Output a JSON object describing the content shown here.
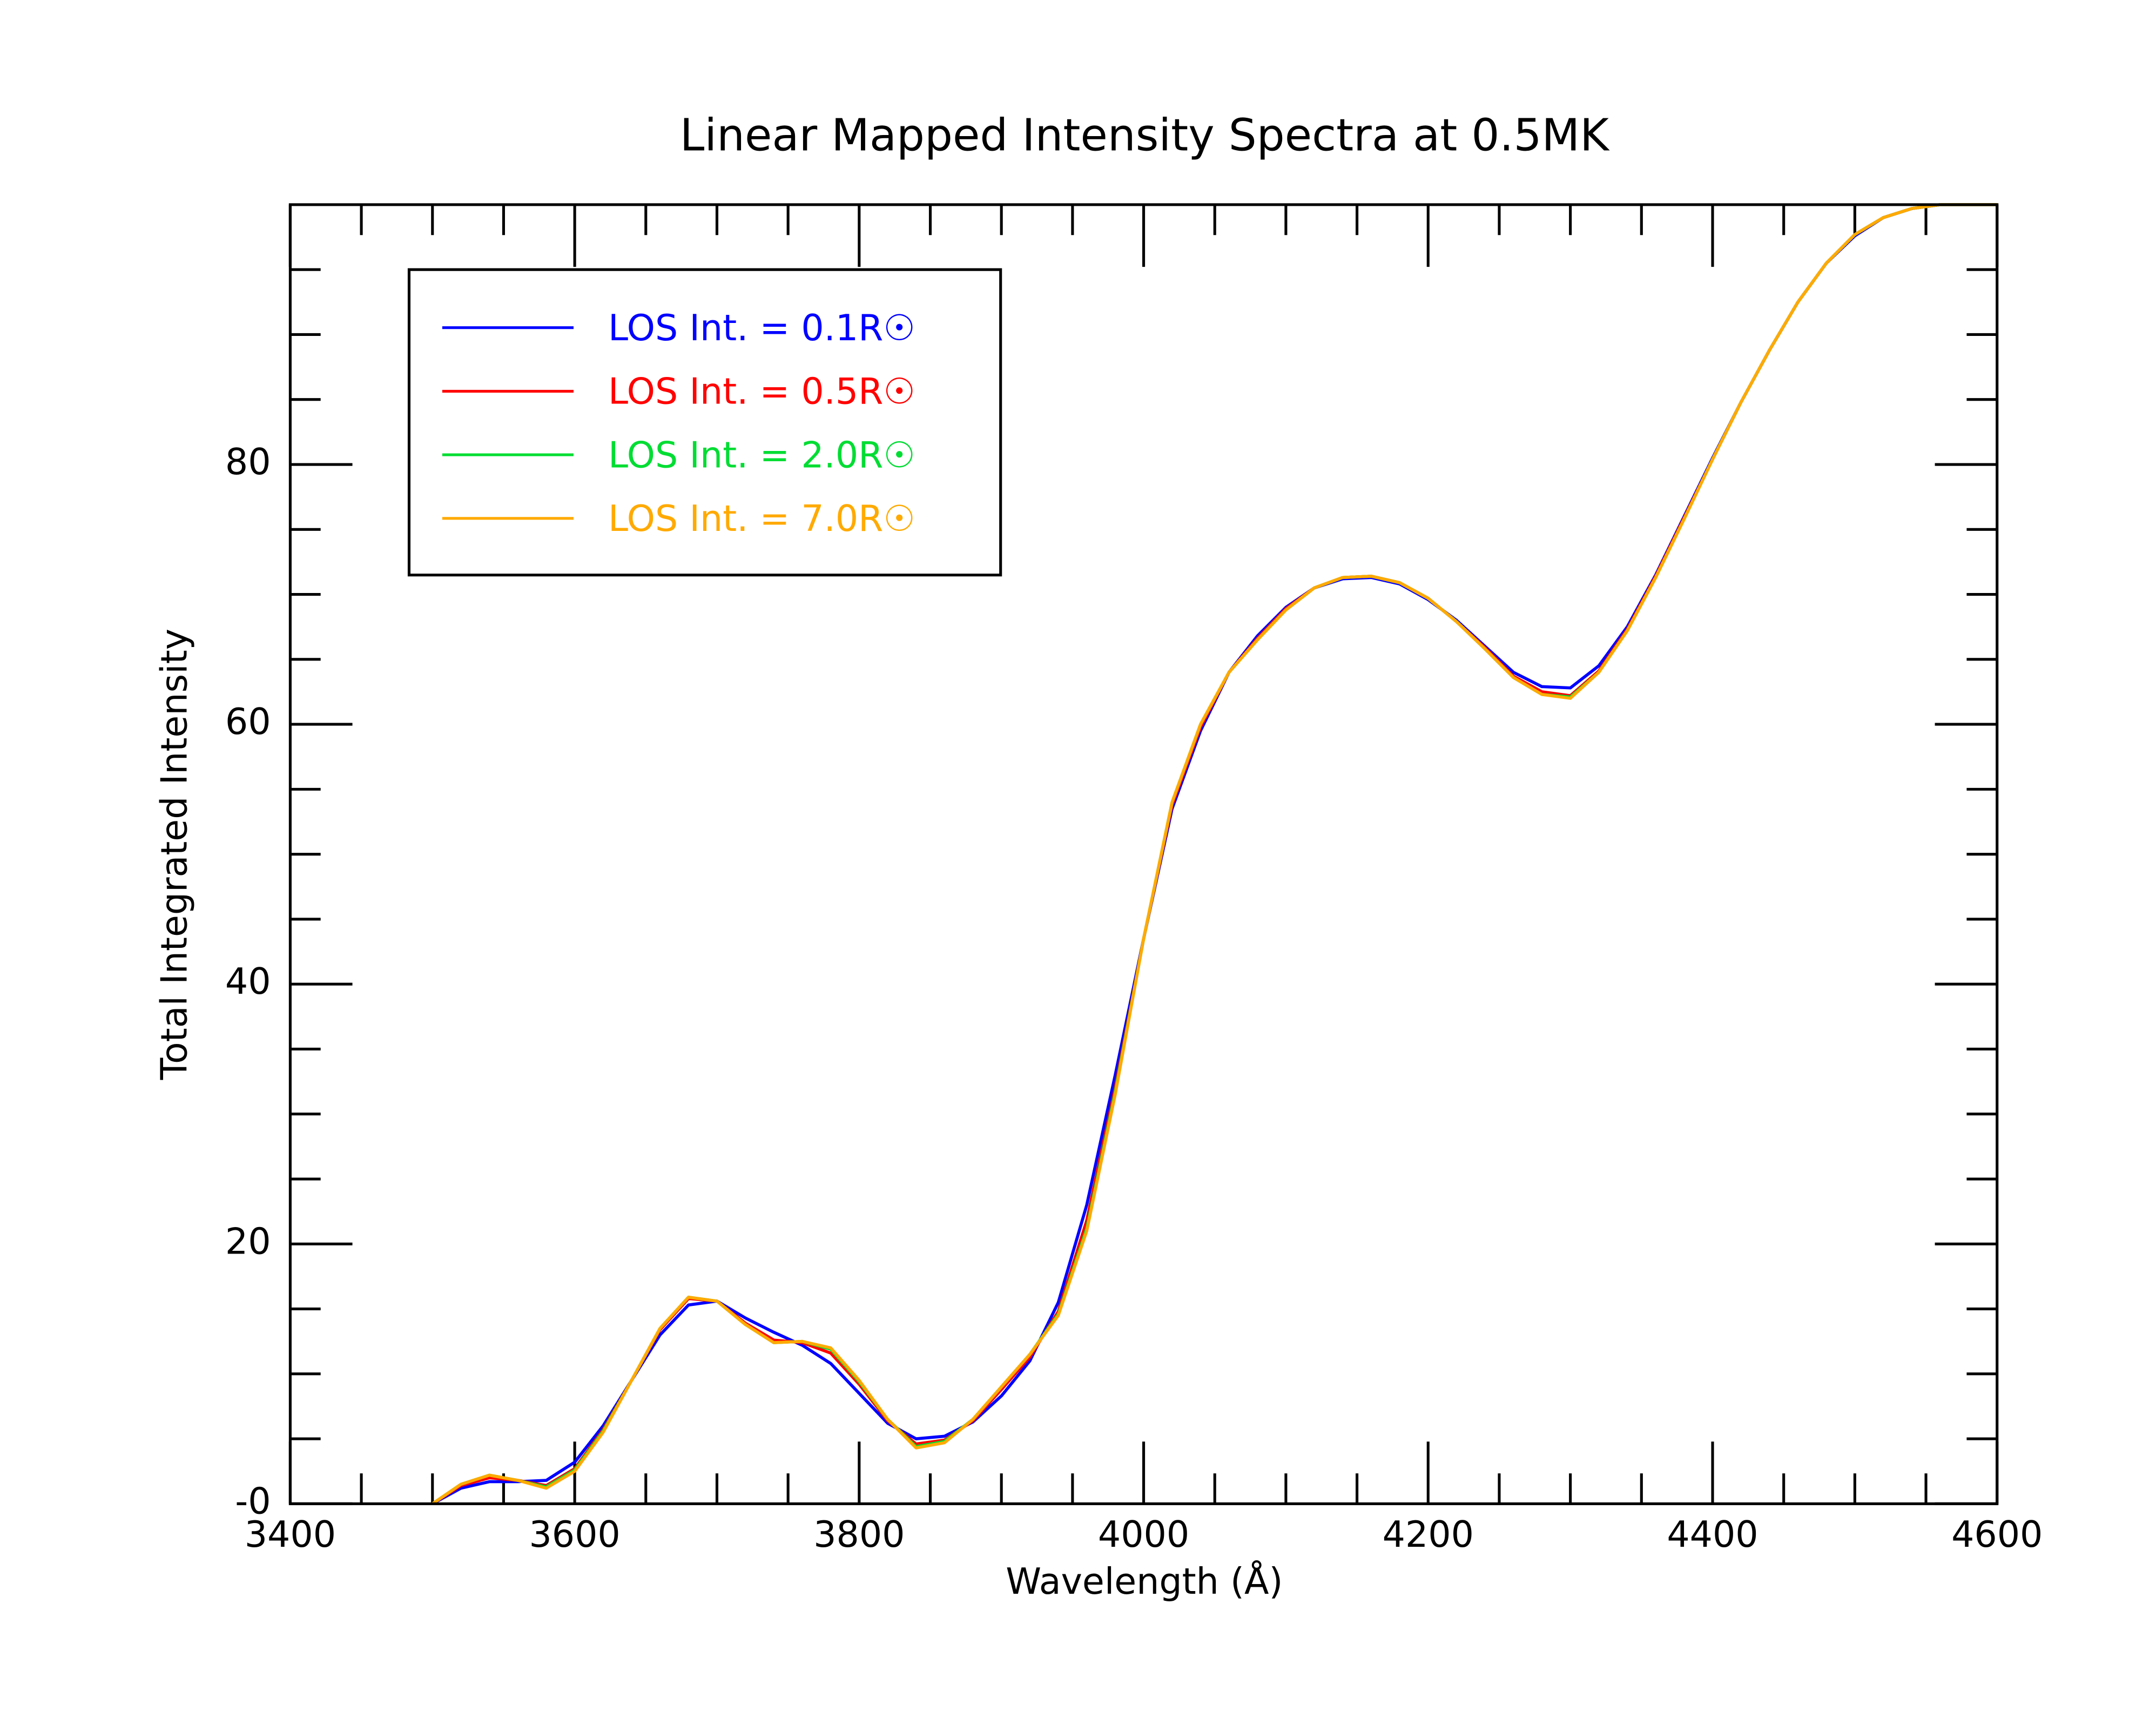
{
  "chart_data": {
    "type": "line",
    "title": "Linear Mapped Intensity Spectra at 0.5MK",
    "x_label": "Wavelength (Å)",
    "y_label": "Total Integrated Intensity",
    "xlim": [
      3400,
      4600
    ],
    "ylim": [
      0,
      100
    ],
    "xticks": [
      3400,
      3600,
      3800,
      4000,
      4200,
      4400,
      4600
    ],
    "yticks": [
      {
        "value": 0,
        "label": "-0"
      },
      20,
      40,
      60,
      80
    ],
    "x_minor_ticks": [
      3450,
      3500,
      3550,
      3650,
      3700,
      3750,
      3850,
      3900,
      3950,
      4050,
      4100,
      4150,
      4250,
      4300,
      4350,
      4450,
      4500,
      4550
    ],
    "y_minor_ticks": [
      5,
      10,
      15,
      25,
      30,
      35,
      45,
      50,
      55,
      65,
      70,
      75,
      85,
      90,
      95
    ],
    "legend": "upper left",
    "x": [
      3500,
      3520,
      3540,
      3560,
      3580,
      3600,
      3620,
      3640,
      3660,
      3680,
      3700,
      3720,
      3740,
      3760,
      3780,
      3800,
      3820,
      3840,
      3860,
      3880,
      3900,
      3920,
      3940,
      3960,
      3980,
      4000,
      4020,
      4040,
      4060,
      4080,
      4100,
      4120,
      4140,
      4160,
      4180,
      4200,
      4220,
      4240,
      4260,
      4280,
      4300,
      4320,
      4340,
      4360,
      4380,
      4400,
      4420,
      4440,
      4460,
      4480,
      4500,
      4520,
      4540,
      4560,
      4580,
      4600
    ],
    "series": [
      {
        "name": "LOS Int. = 0.1R☉",
        "color": "#0000ff",
        "values": [
          0,
          1.2,
          1.7,
          1.7,
          1.8,
          3.2,
          6,
          9.5,
          13,
          15.3,
          15.6,
          14.3,
          13.2,
          12.2,
          10.8,
          8.5,
          6.2,
          5.0,
          5.2,
          6.3,
          8.3,
          11,
          15.5,
          23,
          33,
          43.5,
          53.5,
          59.5,
          64,
          66.8,
          69,
          70.5,
          71.2,
          71.3,
          70.8,
          69.6,
          68,
          66,
          64,
          62.9,
          62.8,
          64.5,
          67.5,
          71.5,
          76,
          80.5,
          84.8,
          88.8,
          92.5,
          95.5,
          97.6,
          99,
          99.7,
          100,
          100,
          100
        ]
      },
      {
        "name": "LOS Int. = 0.5R☉",
        "color": "#ff0000",
        "values": [
          0,
          1.4,
          2.0,
          1.8,
          1.4,
          2.7,
          5.7,
          9.5,
          13.4,
          15.8,
          15.6,
          13.9,
          12.6,
          12.4,
          11.6,
          9.2,
          6.4,
          4.6,
          4.9,
          6.4,
          8.8,
          11.3,
          14.8,
          21.8,
          32,
          43.5,
          53.8,
          59.8,
          64,
          66.6,
          68.9,
          70.5,
          71.3,
          71.4,
          70.9,
          69.7,
          67.9,
          65.9,
          63.7,
          62.5,
          62.2,
          64.1,
          67.3,
          71.4,
          75.9,
          80.4,
          84.8,
          88.8,
          92.5,
          95.5,
          97.7,
          99,
          99.7,
          100,
          100,
          100
        ]
      },
      {
        "name": "LOS Int. = 2.0R☉",
        "color": "#00dd33",
        "values": [
          0,
          1.5,
          2.2,
          1.8,
          1.3,
          2.6,
          5.6,
          9.5,
          13.5,
          15.9,
          15.6,
          13.8,
          12.4,
          12.5,
          11.9,
          9.4,
          6.5,
          4.4,
          4.8,
          6.5,
          9.0,
          11.5,
          14.6,
          21.2,
          31.7,
          43.5,
          54,
          60,
          64,
          66.5,
          68.8,
          70.5,
          71.3,
          71.4,
          70.9,
          69.7,
          67.9,
          65.8,
          63.6,
          62.3,
          62.1,
          64.0,
          67.2,
          71.3,
          75.8,
          80.4,
          84.8,
          88.8,
          92.5,
          95.5,
          97.7,
          99,
          99.7,
          100,
          100,
          100
        ]
      },
      {
        "name": "LOS Int. = 7.0R☉",
        "color": "#ffaa00",
        "values": [
          0,
          1.5,
          2.2,
          1.8,
          1.2,
          2.5,
          5.5,
          9.5,
          13.5,
          15.9,
          15.6,
          13.8,
          12.4,
          12.5,
          12.0,
          9.5,
          6.5,
          4.3,
          4.7,
          6.5,
          9.0,
          11.5,
          14.5,
          21,
          31.5,
          43.5,
          54,
          60,
          64,
          66.5,
          68.8,
          70.5,
          71.3,
          71.4,
          70.9,
          69.7,
          67.9,
          65.8,
          63.6,
          62.3,
          62.0,
          64.0,
          67.2,
          71.3,
          75.8,
          80.4,
          84.8,
          88.8,
          92.5,
          95.5,
          97.7,
          99,
          99.7,
          100,
          100,
          100
        ]
      }
    ]
  }
}
